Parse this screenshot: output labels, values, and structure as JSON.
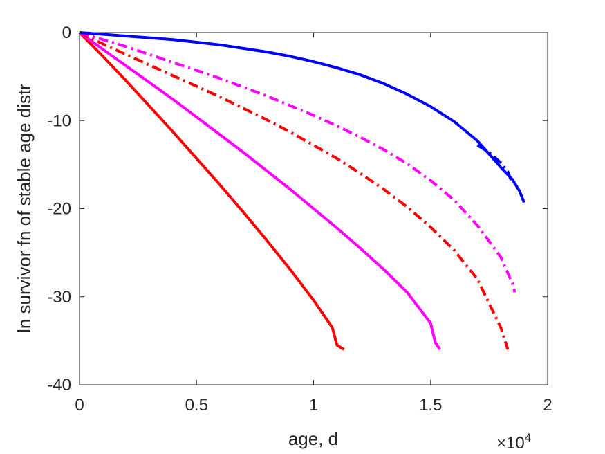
{
  "chart_data": {
    "type": "line",
    "xlabel": "age, d",
    "ylabel": "ln survivor fn of stable age distr",
    "x_exponent_label": "×10",
    "x_exponent_power": "4",
    "xlim": [
      0,
      20000
    ],
    "ylim": [
      -40,
      0
    ],
    "x_ticks": [
      0,
      5000,
      10000,
      15000,
      20000
    ],
    "x_tick_labels": [
      "0",
      "0.5",
      "1",
      "1.5",
      "2"
    ],
    "y_ticks": [
      0,
      -10,
      -20,
      -30,
      -40
    ],
    "y_tick_labels": [
      "0",
      "-10",
      "-20",
      "-30",
      "-40"
    ],
    "grid": false,
    "series": [
      {
        "color": "#ff0000",
        "dash": "solid",
        "x": [
          0,
          1000,
          2000,
          3000,
          4000,
          5000,
          6000,
          7000,
          8000,
          9000,
          10000,
          10800,
          11000,
          11300
        ],
        "y": [
          0,
          -2.7,
          -5.5,
          -8.4,
          -11.3,
          -14.3,
          -17.3,
          -20.4,
          -23.6,
          -26.9,
          -30.4,
          -33.5,
          -35.5,
          -36
        ]
      },
      {
        "color": "#ff00ff",
        "dash": "solid",
        "x": [
          0,
          1000,
          2000,
          3000,
          4000,
          5000,
          6000,
          7000,
          8000,
          9000,
          10000,
          11000,
          12000,
          13000,
          14000,
          15000,
          15200,
          15400
        ],
        "y": [
          0,
          -1.9,
          -3.8,
          -5.7,
          -7.6,
          -9.6,
          -11.6,
          -13.6,
          -15.7,
          -17.8,
          -20.0,
          -22.2,
          -24.5,
          -26.9,
          -29.5,
          -33.0,
          -35.2,
          -36
        ]
      },
      {
        "color": "#ff0000",
        "dash": "dashdot",
        "x": [
          0,
          1000,
          2000,
          3000,
          4000,
          5000,
          6000,
          7000,
          8000,
          9000,
          10000,
          11000,
          12000,
          13000,
          14000,
          15000,
          16000,
          17000,
          18000,
          18300
        ],
        "y": [
          0,
          -1.3,
          -2.5,
          -3.7,
          -4.9,
          -6.1,
          -7.3,
          -8.6,
          -9.9,
          -11.3,
          -12.8,
          -14.3,
          -16.0,
          -17.8,
          -19.8,
          -22.1,
          -24.7,
          -28.0,
          -33.5,
          -36
        ]
      },
      {
        "color": "#ff00ff",
        "dash": "dashdot",
        "x": [
          0,
          1000,
          2000,
          3000,
          4000,
          5000,
          6000,
          7000,
          8000,
          9000,
          10000,
          11000,
          12000,
          13000,
          14000,
          15000,
          16000,
          17000,
          18000,
          18500,
          18600
        ],
        "y": [
          0,
          -0.8,
          -1.6,
          -2.5,
          -3.4,
          -4.3,
          -5.2,
          -6.2,
          -7.2,
          -8.3,
          -9.4,
          -10.6,
          -11.9,
          -13.3,
          -14.9,
          -16.8,
          -19.0,
          -21.9,
          -25.5,
          -28.5,
          -29.5
        ]
      },
      {
        "color": "#0000ff",
        "dash": "dashdot",
        "x": [
          17000,
          17500,
          18000,
          18300,
          18500
        ],
        "y": [
          -12.8,
          -13.6,
          -14.8,
          -15.8,
          -17.2
        ]
      },
      {
        "color": "#0000ff",
        "dash": "solid",
        "x": [
          0,
          1000,
          2000,
          3000,
          4000,
          5000,
          6000,
          7000,
          8000,
          9000,
          10000,
          11000,
          12000,
          13000,
          14000,
          15000,
          16000,
          17000,
          18000,
          18500,
          18800,
          19000
        ],
        "y": [
          0,
          -0.2,
          -0.4,
          -0.6,
          -0.8,
          -1.1,
          -1.4,
          -1.8,
          -2.2,
          -2.7,
          -3.3,
          -4.0,
          -4.8,
          -5.8,
          -7.0,
          -8.4,
          -10.1,
          -12.3,
          -15.3,
          -16.7,
          -18.0,
          -19.3
        ]
      }
    ]
  }
}
